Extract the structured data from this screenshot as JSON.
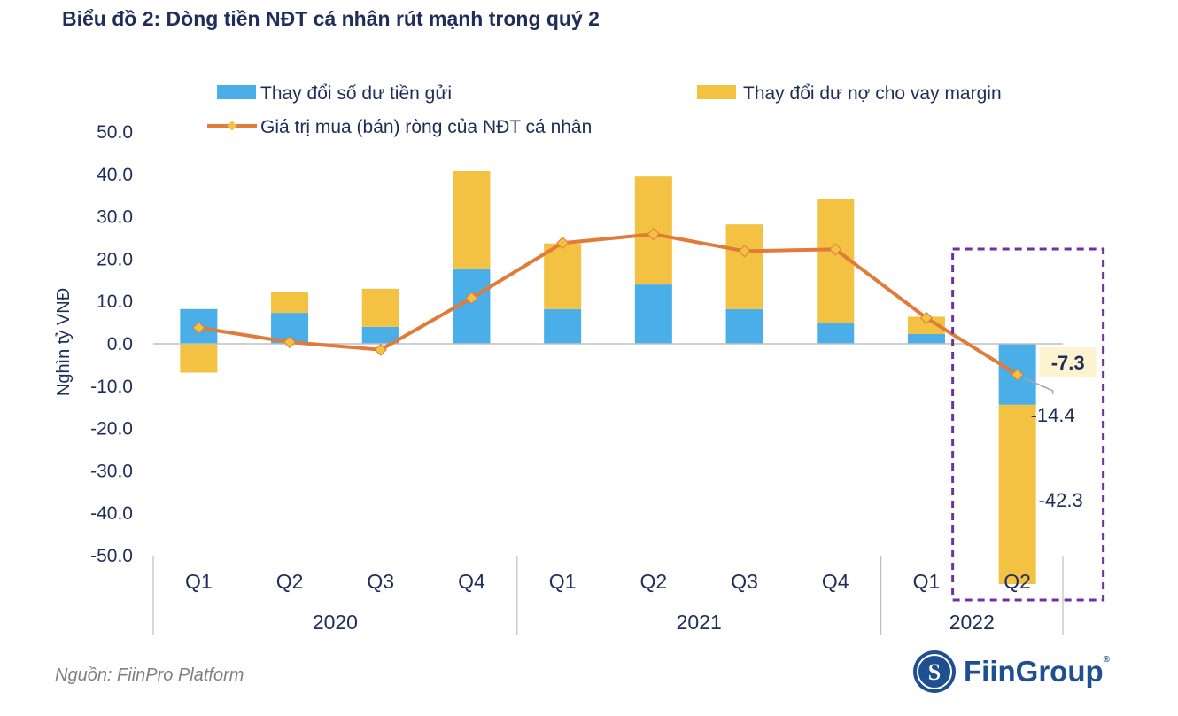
{
  "title": "Biểu đồ 2: Dòng tiền NĐT cá nhân rút mạnh trong quý 2",
  "source": "Nguồn: FiinPro Platform",
  "brand": {
    "name": "FiinGroup",
    "mark": "®"
  },
  "colors": {
    "deposit": "#4aaee8",
    "margin": "#f4c242",
    "line": "#e07b39",
    "marker": "#f4c242",
    "highlight_box": "#7030a0",
    "label_bg": "#fdf3d0",
    "text": "#1f2d5a"
  },
  "chart_data": {
    "type": "bar",
    "title": "Biểu đồ 2: Dòng tiền NĐT cá nhân rút mạnh trong quý 2",
    "ylabel": "Nghìn tỷ VNĐ",
    "ylim": [
      -50,
      50
    ],
    "yticks": [
      "50.0",
      "40.0",
      "30.0",
      "20.0",
      "10.0",
      "0.0",
      "-10.0",
      "-20.0",
      "-30.0",
      "-40.0",
      "-50.0"
    ],
    "categories": [
      "Q1",
      "Q2",
      "Q3",
      "Q4",
      "Q1",
      "Q2",
      "Q3",
      "Q4",
      "Q1",
      "Q2"
    ],
    "groups": [
      {
        "label": "2020",
        "count": 4
      },
      {
        "label": "2021",
        "count": 4
      },
      {
        "label": "2022",
        "count": 2
      }
    ],
    "series": [
      {
        "name": "Thay đổi số dư tiền gửi",
        "kind": "stacked-bar",
        "values": [
          8.2,
          7.3,
          4.0,
          17.8,
          8.2,
          14.0,
          8.2,
          4.8,
          2.3,
          -14.4
        ]
      },
      {
        "name": "Thay đổi dư nợ cho vay margin",
        "kind": "stacked-bar",
        "values": [
          -6.8,
          4.9,
          9.0,
          23.0,
          15.5,
          25.5,
          20.0,
          29.3,
          4.1,
          -42.3
        ]
      },
      {
        "name": "Giá trị mua (bán) ròng của NĐT cá nhân",
        "kind": "line",
        "values": [
          3.8,
          0.4,
          -1.4,
          10.8,
          23.8,
          25.9,
          21.9,
          22.3,
          6.1,
          -7.3
        ]
      }
    ],
    "annotations": [
      {
        "text": "-7.3",
        "series": "Giá trị mua (bán) ròng của NĐT cá nhân",
        "index": 9,
        "highlight": true
      },
      {
        "text": "-14.4",
        "series": "Thay đổi số dư tiền gửi",
        "index": 9
      },
      {
        "text": "-42.3",
        "series": "Thay đổi dư nợ cho vay margin",
        "index": 9
      }
    ],
    "legend": "top",
    "highlight": {
      "category_index": 9,
      "style": "dashed-box"
    }
  }
}
